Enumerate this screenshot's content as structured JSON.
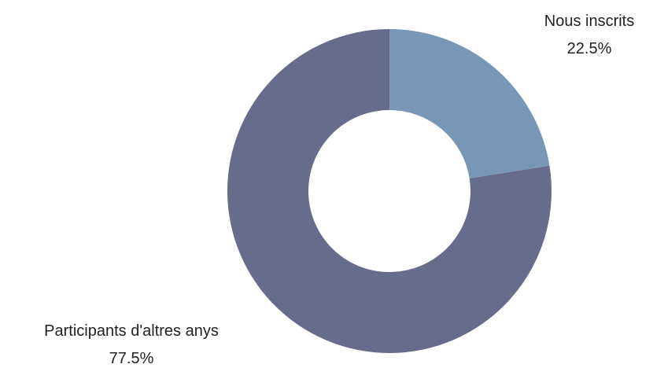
{
  "chart_data": {
    "type": "pie",
    "variant": "donut",
    "title": "",
    "slices": [
      {
        "label": "Nous inscrits",
        "value": 22.5,
        "value_text": "22.5%",
        "color": "#7896b6"
      },
      {
        "label": "Participants d'altres anys",
        "value": 77.5,
        "value_text": "77.5%",
        "color": "#686c8c"
      }
    ],
    "legend": "none"
  }
}
